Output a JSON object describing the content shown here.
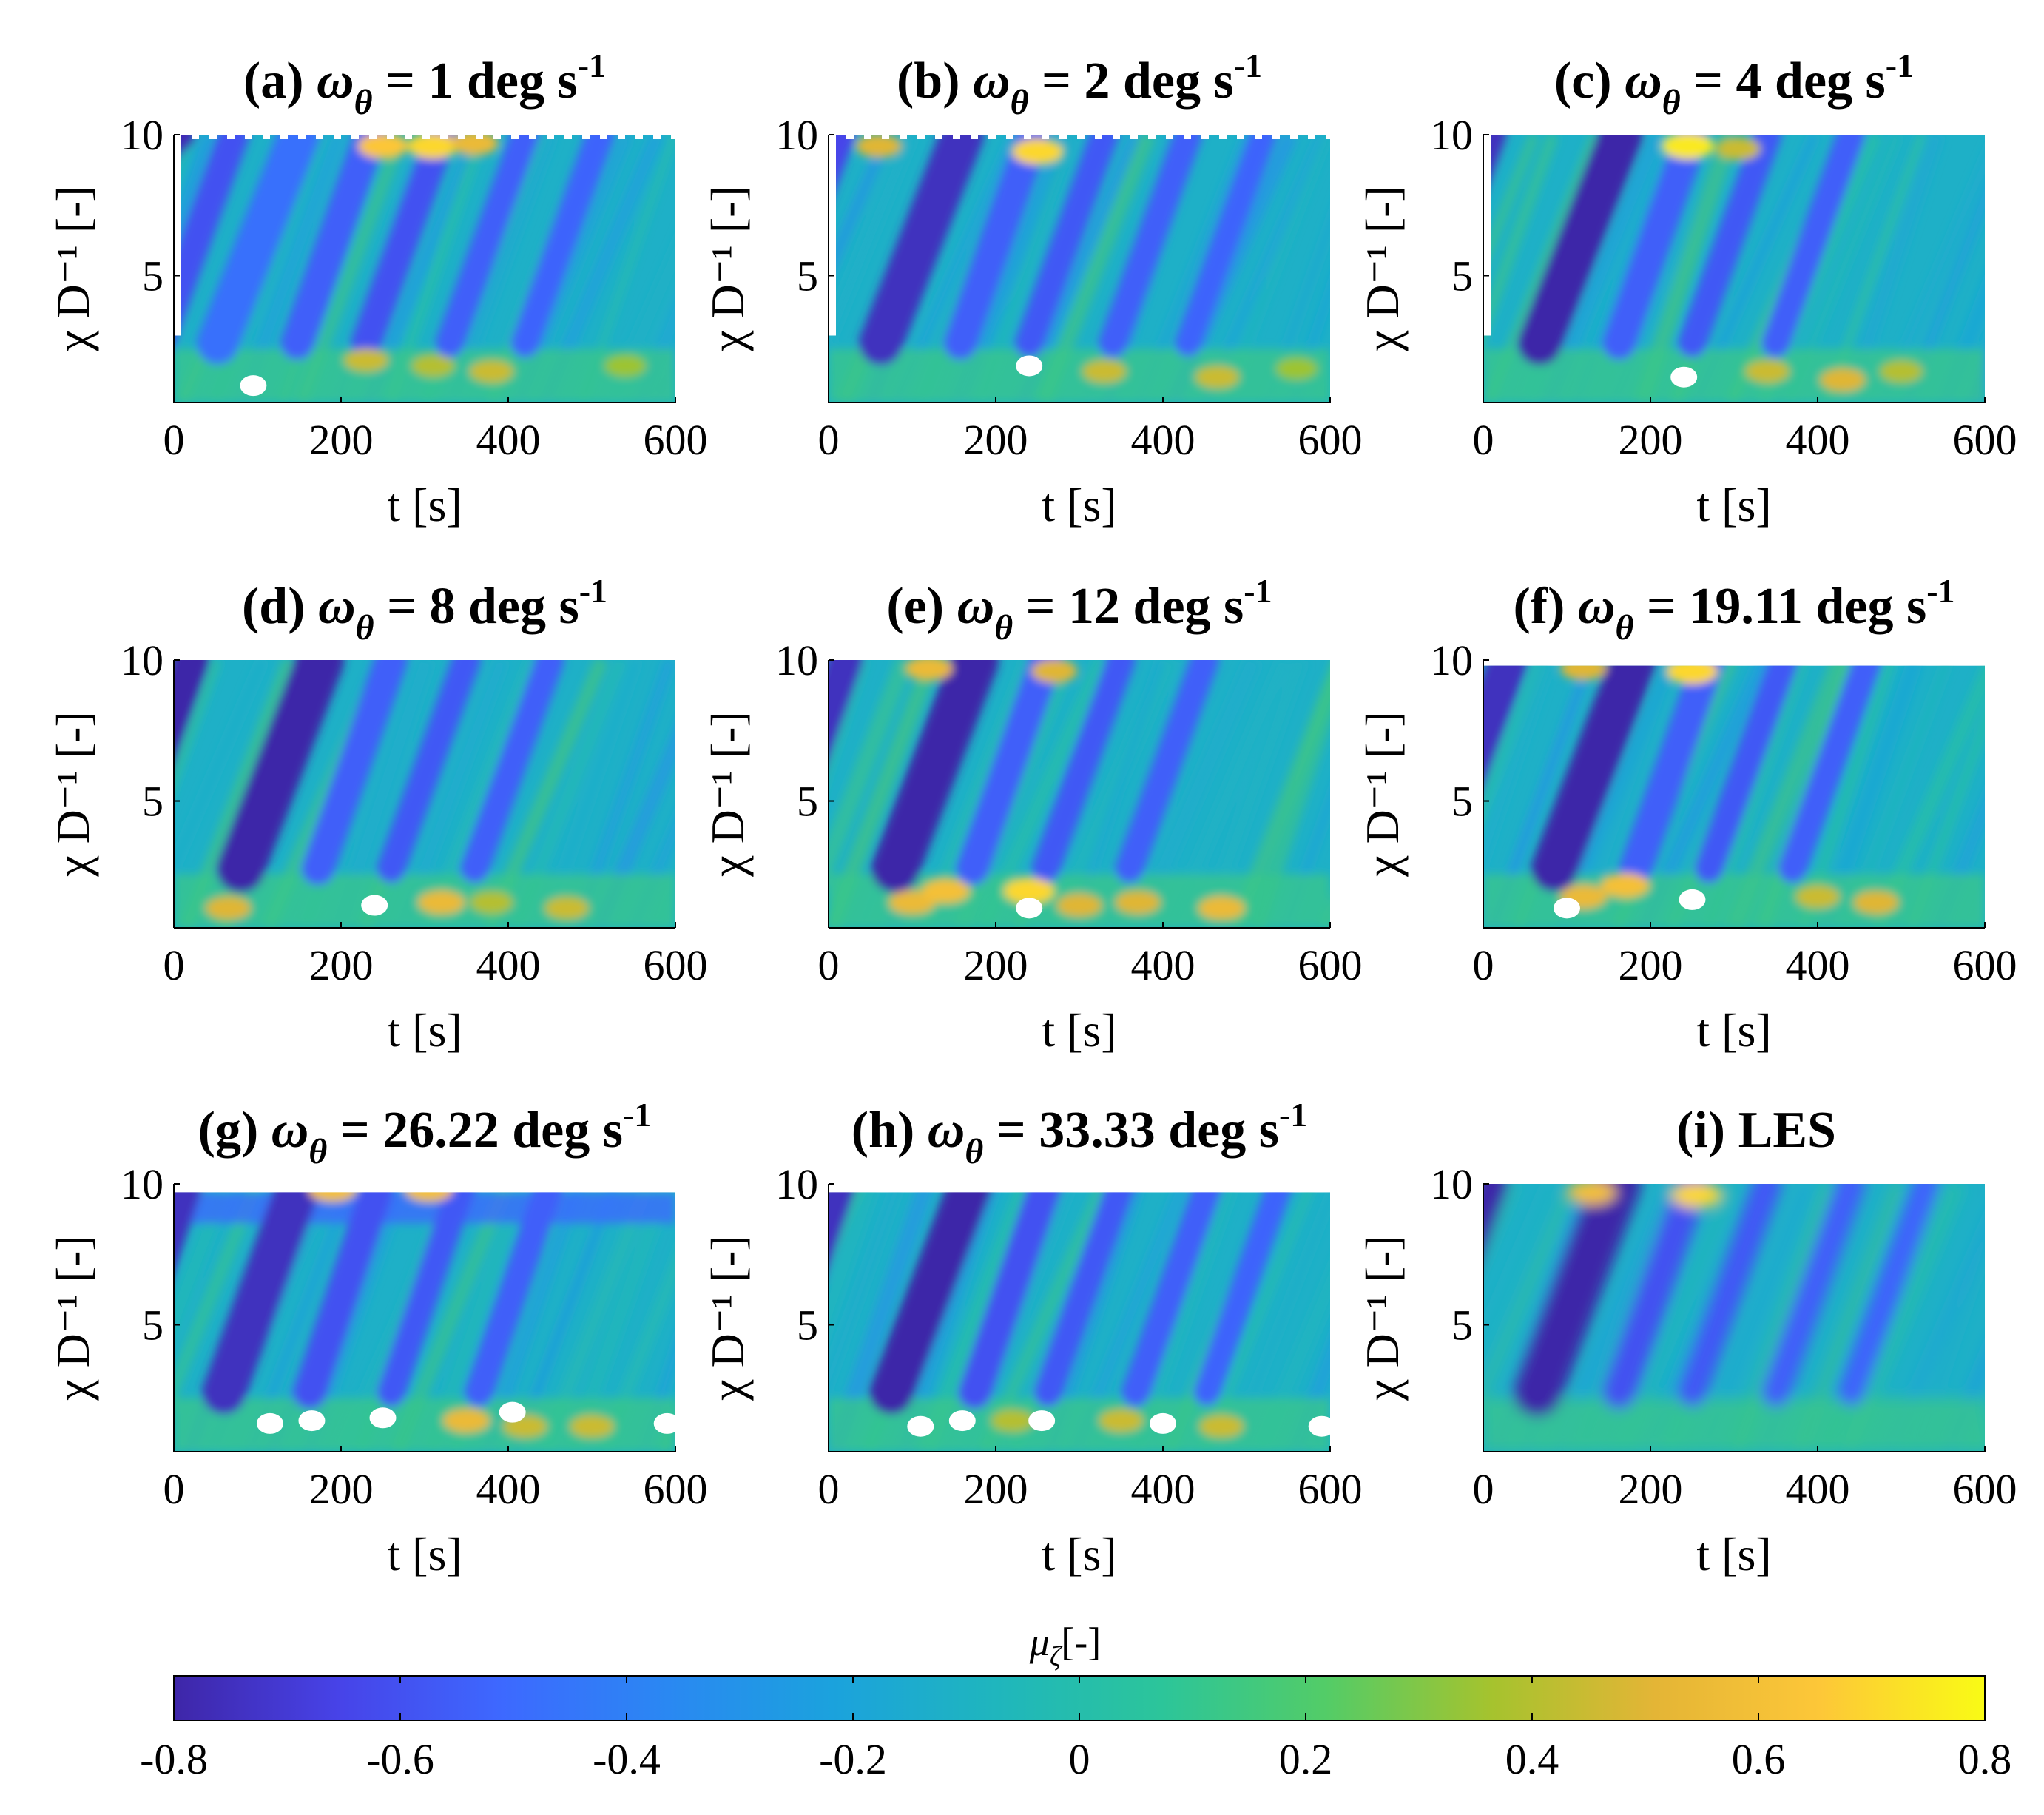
{
  "chart_data": [
    {
      "type": "heatmap",
      "panel": "(a)",
      "title_prefix": "ω",
      "title_sub": "θ",
      "title_value": "= 1 deg s",
      "title_sup": "-1",
      "xlabel": "t [s]",
      "ylabel": "χ D⁻¹ [-]",
      "xlim": [
        0,
        600
      ],
      "ylim": [
        0.5,
        10
      ],
      "xticks": [
        "0",
        "200",
        "400",
        "600"
      ],
      "yticks": [
        "5",
        "10"
      ],
      "bands": [
        [
          10,
          10.0,
          0.62,
          0.25
        ],
        [
          72,
          3.6,
          0.45,
          0.35
        ],
        [
          150,
          3.9,
          0.33,
          0.6
        ],
        [
          235,
          3.5,
          0.4,
          0.4
        ],
        [
          320,
          3.6,
          0.45,
          0.35
        ],
        [
          420,
          3.6,
          0.4,
          0.3
        ],
        [
          510,
          3.6,
          0.38,
          0.3
        ]
      ],
      "blobs": [
        [
          230,
          2.0,
          0.45
        ],
        [
          310,
          1.8,
          0.4
        ],
        [
          380,
          1.6,
          0.45
        ],
        [
          540,
          1.8,
          0.35
        ],
        [
          250,
          9.6,
          0.65
        ],
        [
          310,
          9.6,
          0.7
        ],
        [
          360,
          9.7,
          0.55
        ]
      ],
      "holes": [
        [
          95,
          1.1
        ]
      ],
      "dashed_top": true,
      "start_edge": true
    },
    {
      "type": "heatmap",
      "panel": "(b)",
      "title_prefix": "ω",
      "title_sub": "θ",
      "title_value": "= 2 deg s",
      "title_sup": "-1",
      "xlabel": "t [s]",
      "ylabel": "χ D⁻¹ [-]",
      "xlim": [
        0,
        600
      ],
      "ylim": [
        0.5,
        10
      ],
      "xticks": [
        "0",
        "200",
        "400",
        "600"
      ],
      "yticks": [
        "5",
        "10"
      ],
      "bands": [
        [
          15,
          3.7,
          0.5,
          0.3
        ],
        [
          160,
          3.9,
          0.6,
          0.65
        ],
        [
          245,
          3.5,
          0.4,
          0.4
        ],
        [
          330,
          3.6,
          0.42,
          0.3
        ],
        [
          430,
          3.6,
          0.4,
          0.3
        ],
        [
          520,
          3.6,
          0.38,
          0.25
        ]
      ],
      "blobs": [
        [
          250,
          9.4,
          0.7
        ],
        [
          60,
          9.6,
          0.5
        ],
        [
          330,
          1.6,
          0.45
        ],
        [
          465,
          1.4,
          0.45
        ],
        [
          560,
          1.7,
          0.35
        ]
      ],
      "holes": [
        [
          240,
          1.8
        ]
      ],
      "dashed_top": true,
      "start_edge": true
    },
    {
      "type": "heatmap",
      "panel": "(c)",
      "title_prefix": "ω",
      "title_sub": "θ",
      "title_value": "= 4 deg s",
      "title_sup": "-1",
      "xlabel": "t [s]",
      "ylabel": "χ D⁻¹ [-]",
      "xlim": [
        0,
        600
      ],
      "ylim": [
        0.5,
        10
      ],
      "xticks": [
        "0",
        "200",
        "400",
        "600"
      ],
      "yticks": [
        "5",
        "10"
      ],
      "bands": [
        [
          10,
          3.7,
          0.6,
          0.35
        ],
        [
          165,
          3.9,
          0.65,
          0.65
        ],
        [
          250,
          3.5,
          0.4,
          0.4
        ],
        [
          340,
          3.6,
          0.42,
          0.3
        ],
        [
          440,
          3.6,
          0.4,
          0.3
        ]
      ],
      "blobs": [
        [
          245,
          9.6,
          0.75
        ],
        [
          305,
          9.5,
          0.45
        ],
        [
          340,
          1.6,
          0.45
        ],
        [
          430,
          1.3,
          0.5
        ],
        [
          500,
          1.6,
          0.4
        ]
      ],
      "holes": [
        [
          240,
          1.4
        ]
      ],
      "dashed_top": false,
      "start_edge": true
    },
    {
      "type": "heatmap",
      "panel": "(d)",
      "title_prefix": "ω",
      "title_sub": "θ",
      "title_value": "= 8 deg s",
      "title_sup": "-1",
      "xlabel": "t [s]",
      "ylabel": "χ D⁻¹ [-]",
      "xlim": [
        0,
        600
      ],
      "ylim": [
        0.5,
        10
      ],
      "xticks": [
        "0",
        "200",
        "400",
        "600"
      ],
      "yticks": [
        "5",
        "10"
      ],
      "bands": [
        [
          20,
          3.5,
          0.65,
          0.5
        ],
        [
          175,
          3.8,
          0.7,
          0.75
        ],
        [
          260,
          3.5,
          0.4,
          0.4
        ],
        [
          350,
          3.6,
          0.42,
          0.3
        ],
        [
          450,
          3.6,
          0.4,
          0.3
        ]
      ],
      "blobs": [
        [
          65,
          1.2,
          0.5
        ],
        [
          320,
          1.4,
          0.55
        ],
        [
          380,
          1.4,
          0.4
        ],
        [
          470,
          1.2,
          0.45
        ]
      ],
      "holes": [
        [
          240,
          1.3
        ]
      ],
      "dashed_top": false,
      "start_edge": false
    },
    {
      "type": "heatmap",
      "panel": "(e)",
      "title_prefix": "ω",
      "title_sub": "θ",
      "title_value": "= 12 deg s",
      "title_sup": "-1",
      "xlabel": "t [s]",
      "ylabel": "χ D⁻¹ [-]",
      "xlim": [
        0,
        600
      ],
      "ylim": [
        0.5,
        10
      ],
      "xticks": [
        "0",
        "200",
        "400",
        "600"
      ],
      "yticks": [
        "5",
        "10"
      ],
      "bands": [
        [
          20,
          3.5,
          0.6,
          0.45
        ],
        [
          175,
          3.8,
          0.7,
          0.75
        ],
        [
          260,
          3.5,
          0.4,
          0.4
        ],
        [
          350,
          3.6,
          0.42,
          0.3
        ],
        [
          450,
          3.6,
          0.4,
          0.3
        ]
      ],
      "blobs": [
        [
          100,
          1.4,
          0.55
        ],
        [
          140,
          1.8,
          0.6
        ],
        [
          240,
          1.8,
          0.7
        ],
        [
          300,
          1.3,
          0.5
        ],
        [
          370,
          1.4,
          0.5
        ],
        [
          470,
          1.2,
          0.55
        ],
        [
          120,
          9.7,
          0.55
        ],
        [
          270,
          9.6,
          0.5
        ]
      ],
      "holes": [
        [
          240,
          1.2
        ]
      ],
      "dashed_top": false,
      "start_edge": false
    },
    {
      "type": "heatmap",
      "panel": "(f)",
      "title_prefix": "ω",
      "title_sub": "θ",
      "title_value": "= 19.11 deg s",
      "title_sup": "-1",
      "xlabel": "t [s]",
      "ylabel": "χ D⁻¹ [-]",
      "xlim": [
        0,
        600
      ],
      "ylim": [
        0.5,
        10
      ],
      "xticks": [
        "0",
        "200",
        "400",
        "600"
      ],
      "yticks": [
        "5",
        "10"
      ],
      "bands": [
        [
          30,
          3.6,
          0.6,
          0.55
        ],
        [
          180,
          3.8,
          0.7,
          0.7
        ],
        [
          270,
          3.5,
          0.4,
          0.4
        ],
        [
          360,
          3.6,
          0.42,
          0.3
        ],
        [
          460,
          3.6,
          0.4,
          0.3
        ]
      ],
      "blobs": [
        [
          120,
          1.6,
          0.55
        ],
        [
          170,
          2.0,
          0.6
        ],
        [
          400,
          1.6,
          0.45
        ],
        [
          470,
          1.4,
          0.5
        ],
        [
          250,
          9.6,
          0.7
        ],
        [
          120,
          9.7,
          0.5
        ]
      ],
      "holes": [
        [
          250,
          1.5
        ],
        [
          100,
          1.2
        ]
      ],
      "dashed_top": false,
      "start_edge": false,
      "top_limit": 9.8
    },
    {
      "type": "heatmap",
      "panel": "(g)",
      "title_prefix": "ω",
      "title_sub": "θ",
      "title_value": "= 26.22 deg s",
      "title_sup": "-1",
      "xlabel": "t [s]",
      "ylabel": "χ D⁻¹ [-]",
      "xlim": [
        0,
        600
      ],
      "ylim": [
        0.5,
        10
      ],
      "xticks": [
        "0",
        "200",
        "400",
        "600"
      ],
      "yticks": [
        "5",
        "10"
      ],
      "bands": [
        [
          15,
          3.3,
          0.6,
          0.4
        ],
        [
          150,
          3.6,
          0.6,
          0.65
        ],
        [
          245,
          3.3,
          0.45,
          0.4
        ],
        [
          345,
          3.4,
          0.42,
          0.3
        ],
        [
          450,
          3.4,
          0.4,
          0.3
        ]
      ],
      "blobs": [
        [
          350,
          1.6,
          0.55
        ],
        [
          420,
          1.4,
          0.45
        ],
        [
          500,
          1.4,
          0.45
        ],
        [
          190,
          9.8,
          0.6
        ],
        [
          305,
          9.8,
          0.6
        ]
      ],
      "holes": [
        [
          115,
          1.5
        ],
        [
          165,
          1.6
        ],
        [
          250,
          1.7
        ],
        [
          405,
          1.9
        ],
        [
          590,
          1.5
        ]
      ],
      "dashed_top": false,
      "start_edge": false,
      "top_limit": 9.7,
      "dark_top": true
    },
    {
      "type": "heatmap",
      "panel": "(h)",
      "title_prefix": "ω",
      "title_sub": "θ",
      "title_value": "= 33.33 deg s",
      "title_sup": "-1",
      "xlabel": "t [s]",
      "ylabel": "χ D⁻¹ [-]",
      "xlim": [
        0,
        600
      ],
      "ylim": [
        0.5,
        10
      ],
      "xticks": [
        "0",
        "200",
        "400",
        "600"
      ],
      "yticks": [
        "5",
        "10"
      ],
      "bands": [
        [
          15,
          3.4,
          0.6,
          0.35
        ],
        [
          170,
          3.8,
          0.65,
          0.65
        ],
        [
          260,
          3.4,
          0.45,
          0.4
        ],
        [
          350,
          3.5,
          0.42,
          0.3
        ],
        [
          455,
          3.5,
          0.4,
          0.3
        ],
        [
          540,
          3.5,
          0.38,
          0.25
        ]
      ],
      "blobs": [
        [
          350,
          1.6,
          0.45
        ],
        [
          470,
          1.4,
          0.45
        ],
        [
          220,
          1.6,
          0.4
        ]
      ],
      "holes": [
        [
          110,
          1.4
        ],
        [
          160,
          1.6
        ],
        [
          255,
          1.6
        ],
        [
          400,
          1.5
        ],
        [
          590,
          1.4
        ]
      ],
      "dashed_top": false,
      "start_edge": false,
      "top_limit": 9.7
    },
    {
      "type": "heatmap",
      "panel": "(i)",
      "title_prefix": "",
      "title_sub": "",
      "title_value": "LES",
      "title_sup": "",
      "xlabel": "t [s]",
      "ylabel": "χ D⁻¹ [-]",
      "xlim": [
        0,
        600
      ],
      "ylim": [
        0.5,
        10
      ],
      "xticks": [
        "0",
        "200",
        "400",
        "600"
      ],
      "yticks": [
        "5",
        "10"
      ],
      "bands": [
        [
          10,
          3.6,
          0.65,
          0.4
        ],
        [
          160,
          3.8,
          0.7,
          0.75
        ],
        [
          250,
          3.5,
          0.45,
          0.4
        ],
        [
          340,
          3.6,
          0.42,
          0.3
        ],
        [
          440,
          3.6,
          0.4,
          0.3
        ],
        [
          530,
          3.6,
          0.38,
          0.25
        ]
      ],
      "blobs": [
        [
          130,
          9.7,
          0.6
        ],
        [
          255,
          9.6,
          0.7
        ]
      ],
      "holes": [],
      "dashed_top": false,
      "start_edge": false,
      "smooth": true
    }
  ],
  "colorbar": {
    "label": "μ",
    "label_sub": "ζ",
    "label_suffix": "[-]",
    "range": [
      -0.8,
      0.8
    ],
    "ticks": [
      "-0.8",
      "-0.6",
      "-0.4",
      "-0.2",
      "0",
      "0.2",
      "0.4",
      "0.6",
      "0.8"
    ],
    "colormap": [
      "#3e26a8",
      "#4743e8",
      "#3d69ff",
      "#2a88f2",
      "#1ba2dd",
      "#1fb6bd",
      "#2cc59a",
      "#53cc67",
      "#a5c32e",
      "#e4b536",
      "#fdc738",
      "#f9fb15"
    ]
  }
}
